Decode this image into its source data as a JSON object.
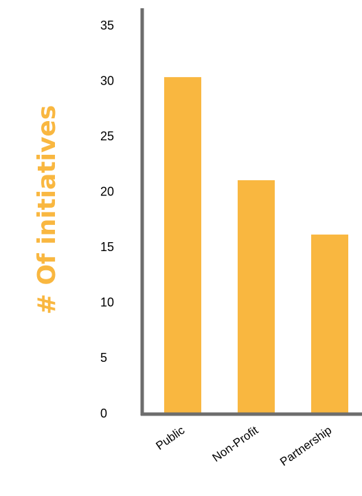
{
  "chart_data": {
    "type": "bar",
    "title": "",
    "xlabel": "",
    "ylabel": "# Of initiatives",
    "categories": [
      "Public",
      "Non-Profit",
      "Partnership"
    ],
    "values": [
      30.4,
      21.1,
      16.2
    ],
    "ylim": [
      0,
      35
    ],
    "yticks": [
      0,
      5,
      10,
      15,
      20,
      25,
      30,
      35
    ],
    "grid": false,
    "legend": "none",
    "colors": {
      "bar": "#F9B740",
      "axis": "#6D6D6D",
      "ylabel": "#F9B740"
    }
  }
}
